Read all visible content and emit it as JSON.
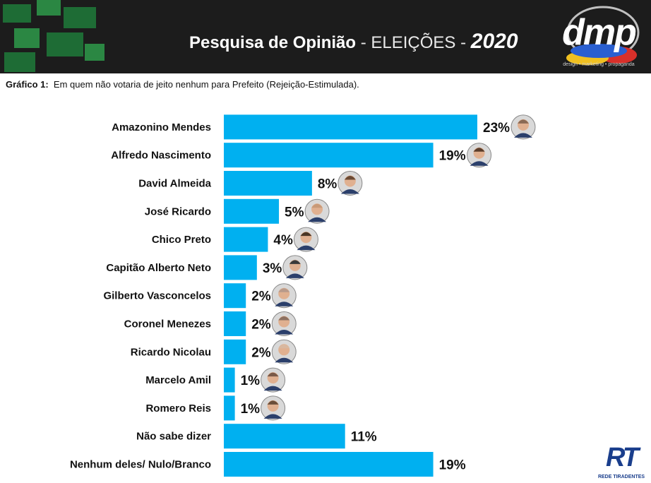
{
  "header": {
    "title_bold": "Pesquisa de Opinião",
    "title_light": " - ELEIÇÕES - ",
    "title_year": "2020",
    "logo_text": "dmp",
    "logo_tagline": "design • marketing • propaganda"
  },
  "subtitle": {
    "label": "Gráfico 1:",
    "text": "Em quem não votaria de jeito nenhum para Prefeito (Rejeição-Estimulada)."
  },
  "watermark": {
    "main": "RT",
    "sub": "REDE TIRADENTES"
  },
  "colors": {
    "bar": "#00b0f0",
    "header_bg": "#1c1c1c",
    "header_green": "#1f7a3a"
  },
  "chart_data": {
    "type": "bar",
    "orientation": "horizontal",
    "title": "Em quem não votaria de jeito nenhum para Prefeito (Rejeição-Estimulada)",
    "unit": "%",
    "xlim": [
      0,
      23
    ],
    "categories": [
      "Amazonino Mendes",
      "Alfredo Nascimento",
      "David Almeida",
      "José Ricardo",
      "Chico Preto",
      "Capitão Alberto Neto",
      "Gilberto Vasconcelos",
      "Coronel Menezes",
      "Ricardo Nicolau",
      "Marcelo Amil",
      "Romero Reis",
      "Não sabe dizer",
      "Nenhum deles/ Nulo/Branco"
    ],
    "values": [
      23,
      19,
      8,
      5,
      4,
      3,
      2,
      2,
      2,
      1,
      1,
      11,
      19
    ],
    "value_labels": [
      "23%",
      "19%",
      "8%",
      "5%",
      "4%",
      "3%",
      "2%",
      "2%",
      "2%",
      "1%",
      "1%",
      "11%",
      "19%"
    ],
    "has_photo": [
      true,
      true,
      true,
      true,
      true,
      true,
      true,
      true,
      true,
      true,
      true,
      false,
      false
    ],
    "photo_colors": [
      "#8a6a55",
      "#5a3d2b",
      "#6b4a34",
      "#c89a78",
      "#4a3626",
      "#3a3a3a",
      "#b89a8a",
      "#8c7060",
      "#d8b8a0",
      "#7a5a48",
      "#6a4e3a",
      "",
      ""
    ]
  }
}
